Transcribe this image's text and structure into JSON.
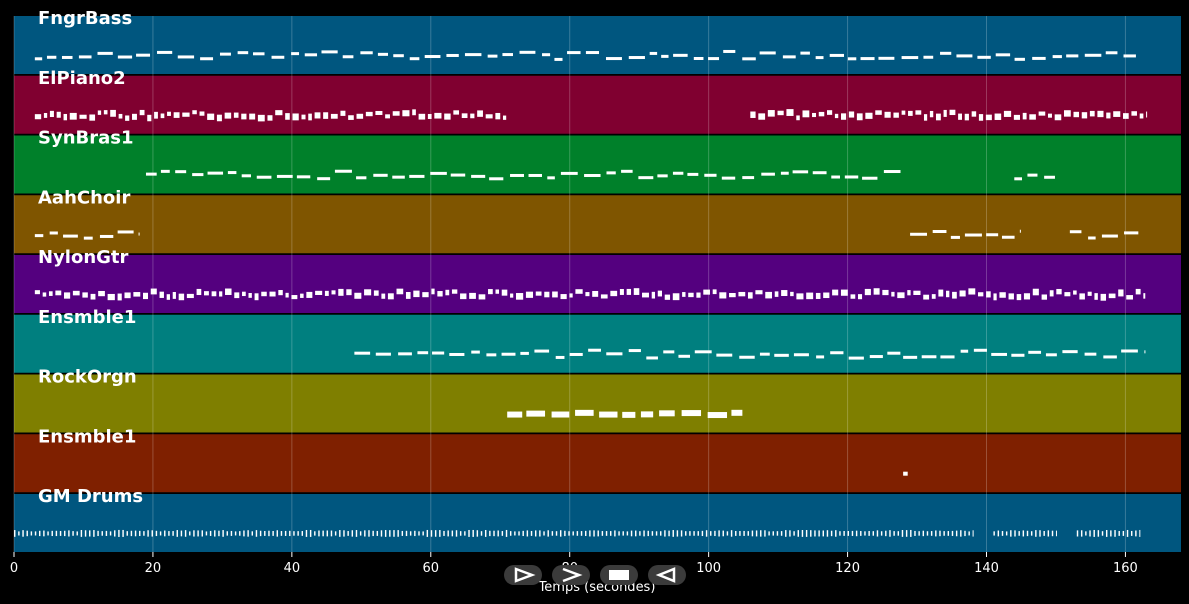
{
  "app": {
    "xlabel": "Temps (secondes)",
    "x_ticks": [
      "0",
      "20",
      "40",
      "60",
      "80",
      "100",
      "120",
      "140",
      "160"
    ],
    "x_range": [
      0,
      168
    ],
    "grid": true,
    "text_color": "#ffffff",
    "background": "#000000",
    "tracks": [
      {
        "name": "FngrBass",
        "color": "#00567f",
        "style": "dash",
        "segments": [
          [
            3,
            162
          ]
        ]
      },
      {
        "name": "ElPiano2",
        "color": "#800030",
        "style": "dense",
        "segments": [
          [
            3,
            71
          ],
          [
            106,
            163
          ]
        ]
      },
      {
        "name": "SynBras1",
        "color": "#00802a",
        "style": "dash",
        "segments": [
          [
            19,
            128
          ],
          [
            144,
            150
          ]
        ]
      },
      {
        "name": "AahChoir",
        "color": "#7f5500",
        "style": "dash",
        "segments": [
          [
            3,
            18
          ],
          [
            129,
            145
          ],
          [
            152,
            162
          ]
        ]
      },
      {
        "name": "NylonGtr",
        "color": "#54007f",
        "style": "dense",
        "segments": [
          [
            3,
            163
          ]
        ]
      },
      {
        "name": "Ensmble1",
        "color": "#007f7f",
        "style": "dash",
        "segments": [
          [
            49,
            128
          ],
          [
            128,
            163
          ]
        ]
      },
      {
        "name": "RockOrgn",
        "color": "#7f7f00",
        "style": "thick",
        "segments": [
          [
            71,
            105
          ]
        ]
      },
      {
        "name": "Ensmble1",
        "color": "#7f2000",
        "style": "dot",
        "segments": [
          [
            128,
            129
          ]
        ]
      },
      {
        "name": "GM Drums",
        "color": "#00567f",
        "style": "drums",
        "segments": [
          [
            0,
            138
          ],
          [
            141,
            150
          ],
          [
            153,
            162
          ]
        ]
      }
    ]
  },
  "controls": [
    {
      "name": "play-button",
      "icon": "play-icon"
    },
    {
      "name": "forward-button",
      "icon": "forward-icon"
    },
    {
      "name": "stop-button",
      "icon": "stop-icon"
    },
    {
      "name": "rewind-button",
      "icon": "rewind-icon"
    }
  ]
}
